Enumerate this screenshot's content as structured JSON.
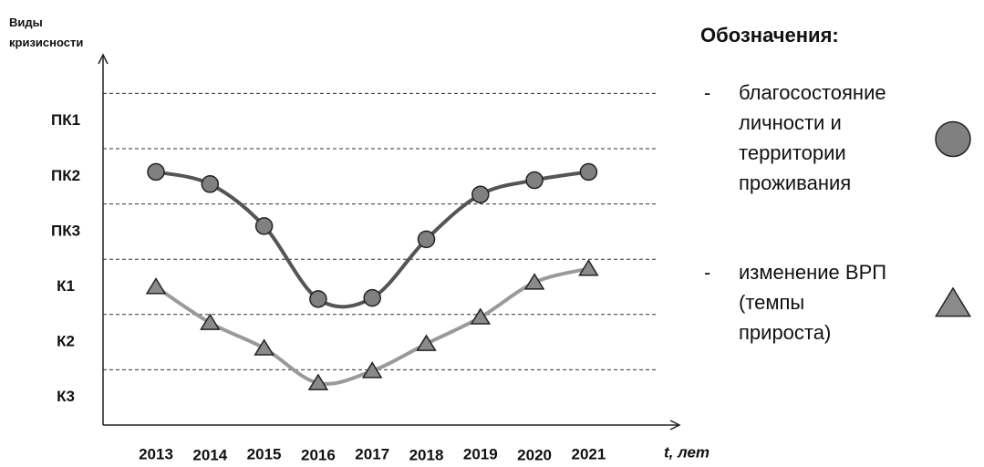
{
  "chart_data": {
    "type": "line",
    "y_label": "Виды кризисности",
    "x_label": "t, лет",
    "legend_title": "Обозначения:",
    "categories": [
      "2013",
      "2014",
      "2015",
      "2016",
      "2017",
      "2018",
      "2019",
      "2020",
      "2021"
    ],
    "ylim": [
      0,
      6.7
    ],
    "yticks": [
      {
        "value": 0.5,
        "label": "К3"
      },
      {
        "value": 1.5,
        "label": "К2"
      },
      {
        "value": 2.5,
        "label": "К1"
      },
      {
        "value": 3.5,
        "label": "ПК3"
      },
      {
        "value": 4.5,
        "label": "ПК2"
      },
      {
        "value": 5.5,
        "label": "ПК1"
      }
    ],
    "band_boundaries": [
      1,
      2,
      3,
      4,
      5,
      6
    ],
    "series": [
      {
        "name": "благосостояние личности и территории проживания",
        "marker": "circle",
        "color": "#555555",
        "marker_color": "#808080",
        "values": [
          4.58,
          4.36,
          3.6,
          2.28,
          2.3,
          3.36,
          4.17,
          4.43,
          4.58
        ]
      },
      {
        "name": "изменение ВРП (темпы прироста)",
        "marker": "triangle",
        "color": "#9a9a9a",
        "marker_color": "#8a8a8a",
        "values": [
          2.5,
          1.85,
          1.39,
          0.76,
          0.98,
          1.47,
          1.95,
          2.58,
          2.83
        ]
      }
    ]
  }
}
